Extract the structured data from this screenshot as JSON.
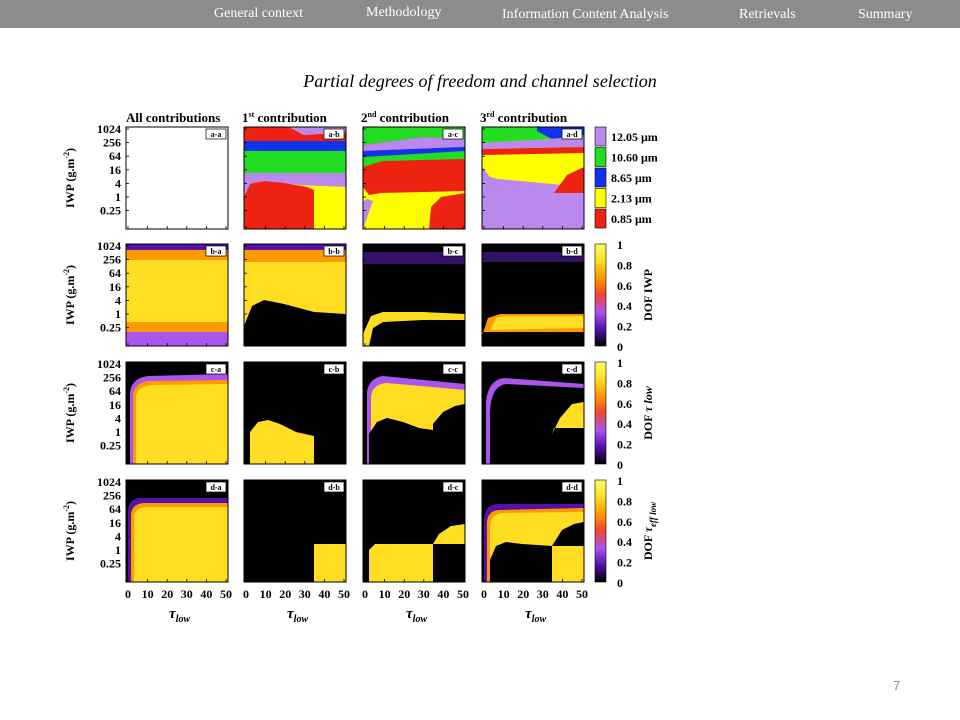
{
  "nav": {
    "items": [
      "General context",
      "Methodology",
      "Information Content Analysis",
      "Retrievals",
      "Summary"
    ]
  },
  "slide": {
    "title": "Partial degrees of freedom and channel selection",
    "page_number": "7"
  },
  "figure": {
    "col_titles": [
      {
        "pre": "All contributions",
        "sup": "",
        "post": ""
      },
      {
        "pre": "1",
        "sup": "st",
        "post": " contribution"
      },
      {
        "pre": "2",
        "sup": "nd",
        "post": " contribution"
      },
      {
        "pre": "3",
        "sup": "rd",
        "post": " contribution"
      }
    ],
    "y_label_main": "IWP (g.m",
    "y_label_sup": "-2",
    "y_label_end": ")",
    "y_ticks": [
      "1024",
      "256",
      "64",
      "16",
      "4",
      "1",
      "0.25"
    ],
    "x_ticks": [
      "0",
      "10",
      "20",
      "30",
      "40",
      "50"
    ],
    "x_label_main": "τ",
    "x_label_sub": "low",
    "panel_labels": [
      [
        "a-a",
        "a-b",
        "a-c",
        "a-d"
      ],
      [
        "b-a",
        "b-b",
        "b-c",
        "b-d"
      ],
      [
        "c-a",
        "c-b",
        "c-c",
        "c-d"
      ],
      [
        "d-a",
        "d-b",
        "d-c",
        "d-d"
      ]
    ],
    "channel_legend": [
      {
        "label": "12.05 μm",
        "color": "#bb88ee"
      },
      {
        "label": "10.60 μm",
        "color": "#22dd22"
      },
      {
        "label": "8.65 μm",
        "color": "#1133ee"
      },
      {
        "label": "2.13 μm",
        "color": "#ffff00"
      },
      {
        "label": "0.85 μm",
        "color": "#ee2211"
      }
    ],
    "colorbar_ticks": [
      "1",
      "0.8",
      "0.6",
      "0.4",
      "0.2",
      "0"
    ],
    "colorbar_labels": [
      {
        "main": "DOF IWP",
        "italic": "",
        "sub": ""
      },
      {
        "main": "DOF ",
        "italic": "τ low",
        "sub": ""
      },
      {
        "main": "DOF ",
        "italic": "τ",
        "sub": "eff low"
      }
    ],
    "colorbar_colors": [
      "#000000",
      "#5511aa",
      "#aa55ee",
      "#ee4433",
      "#ff9900",
      "#ffdd22",
      "#ffff66"
    ]
  }
}
